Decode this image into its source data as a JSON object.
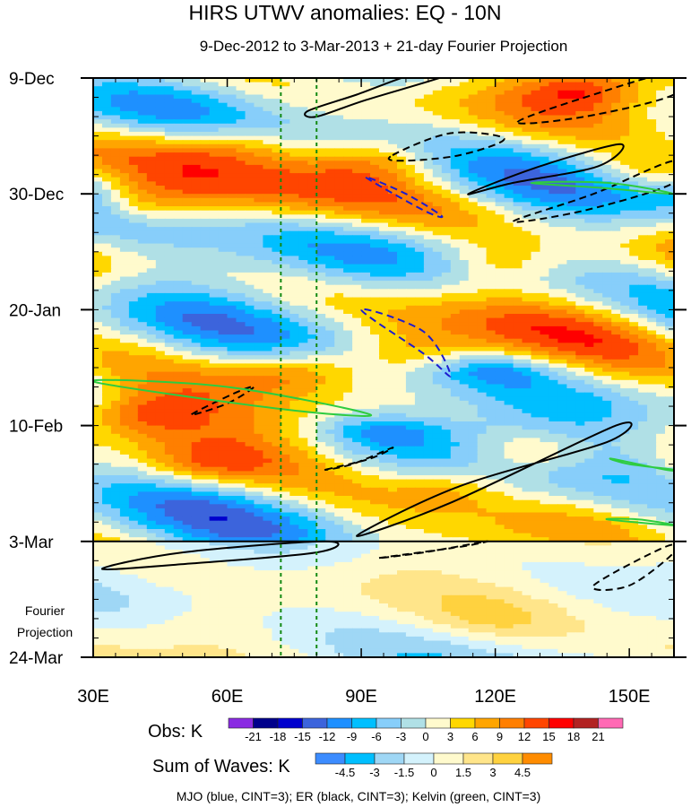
{
  "chart_data": {
    "type": "heatmap",
    "title": "HIRS UTWV anomalies: EQ - 10N",
    "subtitle": "9-Dec-2012 to 3-Mar-2013 + 21-day Fourier Projection",
    "x_axis": {
      "range": [
        30,
        160
      ],
      "ticks": [
        {
          "value": 30,
          "label": "30E"
        },
        {
          "value": 60,
          "label": "60E"
        },
        {
          "value": 90,
          "label": "90E"
        },
        {
          "value": 120,
          "label": "120E"
        },
        {
          "value": 150,
          "label": "150E"
        }
      ]
    },
    "y_axis": {
      "range_days": [
        0,
        105
      ],
      "ticks": [
        {
          "day": 0,
          "label": "9-Dec"
        },
        {
          "day": 21,
          "label": "30-Dec"
        },
        {
          "day": 42,
          "label": "20-Jan"
        },
        {
          "day": 63,
          "label": "10-Feb"
        },
        {
          "day": 84,
          "label": "3-Mar"
        },
        {
          "day": 105,
          "label": "24-Mar"
        }
      ]
    },
    "projection_label_lines": [
      "Fourier",
      "Projection"
    ],
    "projection_start_day": 84,
    "reference_longitudes": [
      72,
      80
    ],
    "obs_colorbar": {
      "label": "Obs: K",
      "levels": [
        -21,
        -18,
        -15,
        -12,
        -9,
        -6,
        -3,
        0,
        3,
        6,
        9,
        12,
        15,
        18,
        21
      ],
      "colors": [
        "#8a2be2",
        "#00008b",
        "#0000cd",
        "#3c64dc",
        "#1e90ff",
        "#00bfff",
        "#87cefa",
        "#b0e0e6",
        "#fffacd",
        "#ffd700",
        "#ffa500",
        "#ff7f00",
        "#ff4500",
        "#ff0000",
        "#b22222",
        "#ff69b4"
      ]
    },
    "waves_colorbar": {
      "label": "Sum of Waves: K",
      "levels": [
        -4.5,
        -3,
        -1.5,
        0,
        1.5,
        3,
        4.5
      ],
      "colors": [
        "#3c8cff",
        "#00bfff",
        "#9fd7f5",
        "#d4f2fc",
        "#fffacd",
        "#ffe58a",
        "#ffd23f",
        "#ff8c00"
      ]
    },
    "legend_note": "MJO (blue, CINT=3); ER (black, CINT=3); Kelvin (green, CINT=3)",
    "wave_contours": [
      {
        "wave": "ER",
        "sign": "positive",
        "color": "#000000",
        "pts": [
          [
            80,
            7
          ],
          [
            91,
            4
          ],
          [
            111,
            -1
          ],
          [
            103,
            -1
          ],
          [
            89,
            3
          ],
          [
            78,
            6
          ]
        ]
      },
      {
        "wave": "ER",
        "sign": "negative",
        "color": "#000000",
        "pts": [
          [
            125,
            8
          ],
          [
            142,
            3
          ],
          [
            160,
            -1
          ],
          [
            160,
            3
          ],
          [
            140,
            7
          ]
        ]
      },
      {
        "wave": "ER",
        "sign": "negative",
        "color": "#000000",
        "pts": [
          [
            97,
            14
          ],
          [
            110,
            10
          ],
          [
            122,
            11
          ],
          [
            112,
            14
          ],
          [
            99,
            15
          ]
        ]
      },
      {
        "wave": "ER",
        "sign": "positive",
        "color": "#000000",
        "pts": [
          [
            114,
            21
          ],
          [
            130,
            16
          ],
          [
            148,
            12
          ],
          [
            143,
            16
          ],
          [
            124,
            19
          ]
        ]
      },
      {
        "wave": "ER",
        "sign": "negative",
        "color": "#000000",
        "pts": [
          [
            124,
            26
          ],
          [
            142,
            21
          ],
          [
            160,
            15
          ],
          [
            160,
            19
          ],
          [
            140,
            24
          ]
        ]
      },
      {
        "wave": "ER",
        "sign": "positive",
        "color": "#000000",
        "pts": [
          [
            89,
            83
          ],
          [
            110,
            77
          ],
          [
            147,
            63
          ],
          [
            145,
            66
          ],
          [
            112,
            74
          ]
        ]
      },
      {
        "wave": "ER",
        "sign": "negative",
        "color": "#000000",
        "pts": [
          [
            52,
            61
          ],
          [
            62,
            57
          ],
          [
            66,
            56
          ],
          [
            60,
            59
          ]
        ]
      },
      {
        "wave": "ER",
        "sign": "negative",
        "color": "#000000",
        "pts": [
          [
            82,
            71
          ],
          [
            92,
            69
          ],
          [
            97,
            67
          ],
          [
            88,
            70
          ]
        ]
      },
      {
        "wave": "ER",
        "sign": "positive",
        "color": "#000000",
        "pts": [
          [
            32,
            89
          ],
          [
            50,
            86
          ],
          [
            82,
            84
          ],
          [
            80,
            86
          ],
          [
            52,
            88
          ]
        ]
      },
      {
        "wave": "ER",
        "sign": "negative",
        "color": "#000000",
        "pts": [
          [
            94,
            87
          ],
          [
            112,
            85
          ],
          [
            118,
            84
          ],
          [
            104,
            86
          ]
        ]
      },
      {
        "wave": "ER",
        "sign": "negative",
        "color": "#000000",
        "pts": [
          [
            142,
            92
          ],
          [
            158,
            85
          ],
          [
            160,
            86
          ],
          [
            150,
            92
          ]
        ]
      },
      {
        "wave": "MJO",
        "sign": "negative",
        "color": "#1c1ccf",
        "pts": [
          [
            91,
            18
          ],
          [
            104,
            24
          ],
          [
            108,
            25
          ],
          [
            100,
            21
          ]
        ]
      },
      {
        "wave": "MJO",
        "sign": "negative",
        "color": "#1c1ccf",
        "pts": [
          [
            90,
            42
          ],
          [
            104,
            50
          ],
          [
            110,
            54
          ],
          [
            104,
            46
          ]
        ]
      },
      {
        "wave": "Kelvin",
        "sign": "positive",
        "color": "#2ecc40",
        "pts": [
          [
            30,
            55
          ],
          [
            72,
            60
          ],
          [
            92,
            61
          ],
          [
            60,
            56
          ]
        ]
      },
      {
        "wave": "Kelvin",
        "sign": "positive",
        "color": "#2ecc40",
        "pts": [
          [
            128,
            19
          ],
          [
            145,
            20
          ],
          [
            160,
            21
          ],
          [
            145,
            19
          ]
        ]
      },
      {
        "wave": "Kelvin",
        "sign": "positive",
        "color": "#2ecc40",
        "pts": [
          [
            146,
            69
          ],
          [
            158,
            71
          ],
          [
            160,
            71
          ],
          [
            150,
            70
          ]
        ]
      },
      {
        "wave": "Kelvin",
        "sign": "positive",
        "color": "#2ecc40",
        "pts": [
          [
            145,
            80
          ],
          [
            158,
            81
          ],
          [
            160,
            81
          ],
          [
            152,
            80
          ]
        ]
      }
    ]
  }
}
